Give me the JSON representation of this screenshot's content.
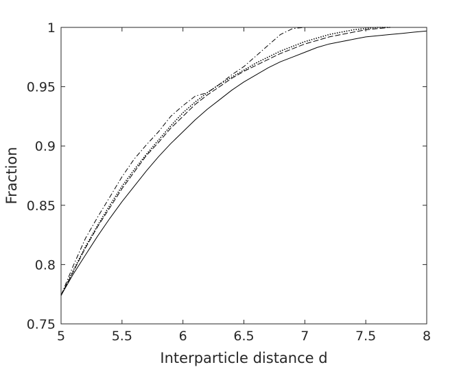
{
  "chart_data": {
    "type": "line",
    "title": "",
    "xlabel": "Interparticle distance d",
    "ylabel": "Fraction",
    "xlim": [
      5,
      8
    ],
    "ylim": [
      0.75,
      1
    ],
    "xticks": [
      5,
      5.5,
      6,
      6.5,
      7,
      7.5,
      8
    ],
    "yticks": [
      0.75,
      0.8,
      0.85,
      0.9,
      0.95,
      1
    ],
    "xtick_labels": [
      "5",
      "5.5",
      "6",
      "6.5",
      "7",
      "7.5",
      "8"
    ],
    "ytick_labels": [
      "0.75",
      "0.8",
      "0.85",
      "0.9",
      "0.95",
      "1"
    ],
    "grid": false,
    "box": true,
    "series": [
      {
        "style": "solid",
        "color": "#000000",
        "x": [
          5.0,
          5.1,
          5.2,
          5.3,
          5.4,
          5.5,
          5.6,
          5.7,
          5.8,
          5.9,
          6.0,
          6.1,
          6.2,
          6.3,
          6.4,
          6.5,
          6.6,
          6.7,
          6.8,
          6.9,
          7.0,
          7.1,
          7.2,
          7.3,
          7.4,
          7.5,
          7.6,
          7.7,
          7.8,
          7.9,
          8.0
        ],
        "y": [
          0.774,
          0.792,
          0.808,
          0.824,
          0.839,
          0.853,
          0.866,
          0.879,
          0.891,
          0.902,
          0.912,
          0.922,
          0.931,
          0.939,
          0.947,
          0.954,
          0.96,
          0.966,
          0.971,
          0.975,
          0.979,
          0.983,
          0.986,
          0.988,
          0.99,
          0.992,
          0.993,
          0.994,
          0.995,
          0.996,
          0.997
        ]
      },
      {
        "style": "dashed",
        "color": "#000000",
        "x": [
          5.0,
          5.1,
          5.2,
          5.3,
          5.4,
          5.5,
          5.6,
          5.7,
          5.8,
          5.9,
          6.0,
          6.1,
          6.2,
          6.3,
          6.4,
          6.5,
          6.6,
          6.7,
          6.8,
          6.9,
          7.0,
          7.1,
          7.2,
          7.3,
          7.4,
          7.5,
          7.6,
          7.7,
          7.8
        ],
        "y": [
          0.774,
          0.794,
          0.814,
          0.832,
          0.848,
          0.864,
          0.878,
          0.892,
          0.903,
          0.915,
          0.925,
          0.935,
          0.943,
          0.95,
          0.957,
          0.963,
          0.968,
          0.973,
          0.978,
          0.982,
          0.986,
          0.989,
          0.992,
          0.994,
          0.996,
          0.998,
          0.999,
          1.0,
          1.0
        ]
      },
      {
        "style": "dotted",
        "color": "#000000",
        "x": [
          5.0,
          5.1,
          5.2,
          5.3,
          5.4,
          5.5,
          5.6,
          5.7,
          5.8,
          5.9,
          6.0,
          6.1,
          6.2,
          6.3,
          6.4,
          6.5,
          6.6,
          6.7,
          6.8,
          6.9,
          7.0,
          7.1,
          7.2,
          7.3,
          7.4,
          7.5,
          7.6,
          7.7
        ],
        "y": [
          0.774,
          0.795,
          0.815,
          0.833,
          0.85,
          0.866,
          0.88,
          0.893,
          0.905,
          0.917,
          0.928,
          0.937,
          0.945,
          0.952,
          0.958,
          0.964,
          0.97,
          0.975,
          0.98,
          0.984,
          0.988,
          0.991,
          0.994,
          0.996,
          0.998,
          0.999,
          1.0,
          1.0
        ]
      },
      {
        "style": "dashdot",
        "color": "#000000",
        "x": [
          5.0,
          5.1,
          5.2,
          5.3,
          5.4,
          5.5,
          5.6,
          5.7,
          5.8,
          5.9,
          6.0,
          6.1,
          6.2,
          6.3,
          6.4,
          6.5,
          6.6,
          6.7,
          6.8,
          6.9,
          7.0,
          7.1
        ],
        "y": [
          0.774,
          0.799,
          0.822,
          0.84,
          0.857,
          0.874,
          0.889,
          0.901,
          0.912,
          0.925,
          0.934,
          0.942,
          0.945,
          0.952,
          0.96,
          0.967,
          0.976,
          0.985,
          0.994,
          0.999,
          1.0,
          1.0
        ]
      }
    ]
  }
}
